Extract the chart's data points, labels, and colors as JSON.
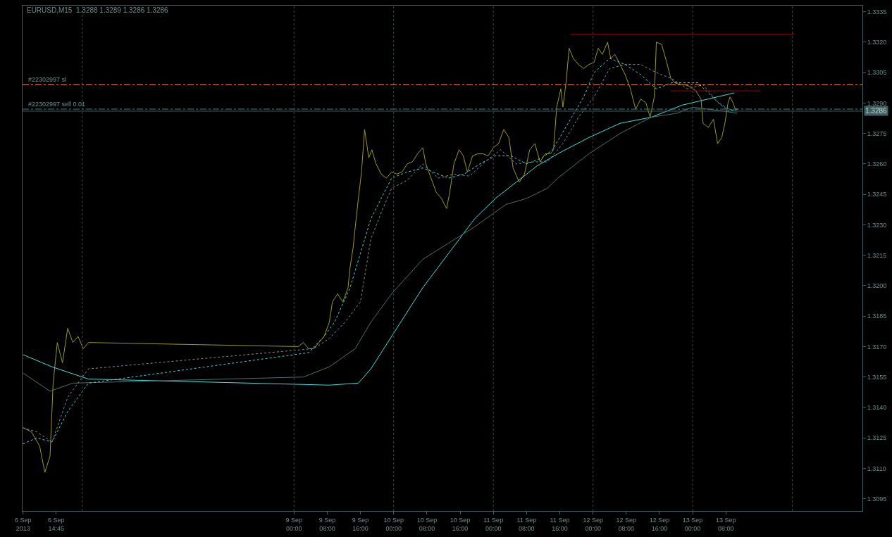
{
  "chart_data": {
    "type": "line",
    "title": "EURUSD,M15  1.3288 1.3289 1.3286 1.3286",
    "xlim": [
      "2013-09-06T06:38",
      "2013-09-14T16:52"
    ],
    "ylim": [
      1.3089,
      1.3338
    ],
    "xticks": [
      {
        "value": "2013-09-06T06:45",
        "label": "6 Sep 2013"
      },
      {
        "value": "2013-09-06T14:45",
        "label": "6 Sep 14:45"
      },
      {
        "value": "2013-09-09T00:00",
        "label": "9 Sep 00:00"
      },
      {
        "value": "2013-09-09T08:00",
        "label": "9 Sep 08:00"
      },
      {
        "value": "2013-09-09T16:00",
        "label": "9 Sep 16:00"
      },
      {
        "value": "2013-09-10T00:00",
        "label": "10 Sep 00:00"
      },
      {
        "value": "2013-09-10T08:00",
        "label": "10 Sep 08:00"
      },
      {
        "value": "2013-09-10T16:00",
        "label": "10 Sep 16:00"
      },
      {
        "value": "2013-09-11T00:00",
        "label": "11 Sep 00:00"
      },
      {
        "value": "2013-09-11T08:00",
        "label": "11 Sep 08:00"
      },
      {
        "value": "2013-09-11T16:00",
        "label": "11 Sep 16:00"
      },
      {
        "value": "2013-09-12T00:00",
        "label": "12 Sep 00:00"
      },
      {
        "value": "2013-09-12T08:00",
        "label": "12 Sep 08:00"
      },
      {
        "value": "2013-09-12T16:00",
        "label": "12 Sep 16:00"
      },
      {
        "value": "2013-09-13T00:00",
        "label": "13 Sep 00:00"
      },
      {
        "value": "2013-09-13T08:00",
        "label": "13 Sep 08:00"
      }
    ],
    "yticks": [
      {
        "value": 1.3095,
        "label": "1.3095"
      },
      {
        "value": 1.311,
        "label": "1.3110"
      },
      {
        "value": 1.3125,
        "label": "1.3125"
      },
      {
        "value": 1.314,
        "label": "1.3140"
      },
      {
        "value": 1.3155,
        "label": "1.3155"
      },
      {
        "value": 1.317,
        "label": "1.3170"
      },
      {
        "value": 1.3185,
        "label": "1.3185"
      },
      {
        "value": 1.32,
        "label": "1.3200"
      },
      {
        "value": 1.3215,
        "label": "1.3215"
      },
      {
        "value": 1.323,
        "label": "1.3230"
      },
      {
        "value": 1.3245,
        "label": "1.3245"
      },
      {
        "value": 1.326,
        "label": "1.3260"
      },
      {
        "value": 1.3275,
        "label": "1.3275"
      },
      {
        "value": 1.329,
        "label": "1.3290"
      },
      {
        "value": 1.3305,
        "label": "1.3305"
      },
      {
        "value": 1.332,
        "label": "1.3320"
      },
      {
        "value": 1.3335,
        "label": "1.3335"
      }
    ],
    "grid": false,
    "marker": "none",
    "series": [
      {
        "color": "#9a9a20",
        "line_style": "solid",
        "x": [
          "2013-09-06T06:45",
          "2013-09-06T08:45",
          "2013-09-06T10:45",
          "2013-09-06T12:00",
          "2013-09-06T13:15",
          "2013-09-06T14:00",
          "2013-09-06T15:00",
          "2013-09-06T16:15",
          "2013-09-06T17:30",
          "2013-09-06T18:45",
          "2013-09-06T20:00",
          "2013-09-06T21:15",
          "2013-09-06T22:30",
          "2013-09-09T01:00",
          "2013-09-09T02:15",
          "2013-09-09T03:30",
          "2013-09-09T04:45",
          "2013-09-09T06:00",
          "2013-09-09T07:15",
          "2013-09-09T08:30",
          "2013-09-09T09:15",
          "2013-09-09T10:30",
          "2013-09-09T11:45",
          "2013-09-09T13:00",
          "2013-09-09T13:30",
          "2013-09-09T14:15",
          "2013-09-09T14:45",
          "2013-09-09T15:30",
          "2013-09-09T16:15",
          "2013-09-09T17:00",
          "2013-09-09T18:00",
          "2013-09-09T18:45",
          "2013-09-09T19:45",
          "2013-09-09T21:00",
          "2013-09-09T22:15",
          "2013-09-09T23:30",
          "2013-09-10T00:45",
          "2013-09-10T02:00",
          "2013-09-10T03:15",
          "2013-09-10T04:30",
          "2013-09-10T05:45",
          "2013-09-10T07:00",
          "2013-09-10T07:45",
          "2013-09-10T09:00",
          "2013-09-10T10:15",
          "2013-09-10T11:30",
          "2013-09-10T12:45",
          "2013-09-10T13:30",
          "2013-09-10T14:30",
          "2013-09-10T15:45",
          "2013-09-10T16:45",
          "2013-09-10T17:45",
          "2013-09-10T19:00",
          "2013-09-10T20:15",
          "2013-09-10T21:30",
          "2013-09-10T22:45",
          "2013-09-11T00:00",
          "2013-09-11T01:15",
          "2013-09-11T02:30",
          "2013-09-11T03:45",
          "2013-09-11T04:45",
          "2013-09-11T06:15",
          "2013-09-11T07:30",
          "2013-09-11T08:45",
          "2013-09-11T10:00",
          "2013-09-11T11:15",
          "2013-09-11T12:30",
          "2013-09-11T13:45",
          "2013-09-11T14:30",
          "2013-09-11T15:15",
          "2013-09-11T16:15",
          "2013-09-11T16:45",
          "2013-09-11T17:30",
          "2013-09-11T18:15",
          "2013-09-11T19:15",
          "2013-09-11T20:30",
          "2013-09-11T21:45",
          "2013-09-11T23:00",
          "2013-09-12T00:15",
          "2013-09-12T01:15",
          "2013-09-12T02:15",
          "2013-09-12T03:30",
          "2013-09-12T04:15",
          "2013-09-12T05:15",
          "2013-09-12T06:30",
          "2013-09-12T07:45",
          "2013-09-12T09:00",
          "2013-09-12T10:15",
          "2013-09-12T11:30",
          "2013-09-12T12:45",
          "2013-09-12T13:45",
          "2013-09-12T14:45",
          "2013-09-12T15:15",
          "2013-09-12T16:30",
          "2013-09-12T17:45",
          "2013-09-12T18:45",
          "2013-09-12T19:45",
          "2013-09-12T21:00",
          "2013-09-12T22:15",
          "2013-09-12T23:30",
          "2013-09-13T00:45",
          "2013-09-13T02:00",
          "2013-09-13T02:30",
          "2013-09-13T03:45",
          "2013-09-13T05:00",
          "2013-09-13T06:00",
          "2013-09-13T07:00",
          "2013-09-13T07:45",
          "2013-09-13T08:30",
          "2013-09-13T09:00",
          "2013-09-13T09:45",
          "2013-09-13T10:15",
          "2013-09-13T10:45"
        ],
        "values": [
          1.313,
          1.3128,
          1.3121,
          1.3108,
          1.3116,
          1.3152,
          1.3172,
          1.3162,
          1.3179,
          1.3172,
          1.3175,
          1.3169,
          1.3172,
          1.317,
          1.3172,
          1.3169,
          1.3169,
          1.3172,
          1.3175,
          1.3182,
          1.3192,
          1.3196,
          1.3192,
          1.3199,
          1.3209,
          1.3219,
          1.3229,
          1.3243,
          1.3256,
          1.3277,
          1.3263,
          1.3267,
          1.326,
          1.3255,
          1.3253,
          1.3256,
          1.3255,
          1.3256,
          1.326,
          1.3261,
          1.3265,
          1.3268,
          1.326,
          1.3253,
          1.3246,
          1.3243,
          1.3238,
          1.3246,
          1.326,
          1.3267,
          1.3264,
          1.3256,
          1.3264,
          1.3265,
          1.3265,
          1.3264,
          1.3268,
          1.327,
          1.3277,
          1.3273,
          1.3258,
          1.3251,
          1.3255,
          1.3267,
          1.327,
          1.3261,
          1.3265,
          1.3265,
          1.3267,
          1.3288,
          1.3297,
          1.3288,
          1.33,
          1.3317,
          1.3312,
          1.3309,
          1.3307,
          1.3309,
          1.331,
          1.3317,
          1.3314,
          1.332,
          1.3312,
          1.3314,
          1.3309,
          1.3304,
          1.3297,
          1.3287,
          1.3292,
          1.329,
          1.3283,
          1.3293,
          1.332,
          1.3319,
          1.331,
          1.3302,
          1.33,
          1.3299,
          1.3299,
          1.3298,
          1.3296,
          1.3292,
          1.328,
          1.3278,
          1.3282,
          1.327,
          1.3273,
          1.328,
          1.329,
          1.3293,
          1.329,
          1.3287,
          1.3287
        ]
      },
      {
        "color": "#40e0e0",
        "line_style": "solid",
        "x": [
          "2013-09-06T06:45",
          "2013-09-06T13:45",
          "2013-09-06T22:30",
          "2013-09-09T08:30",
          "2013-09-09T15:30",
          "2013-09-09T18:30",
          "2013-09-10T00:45",
          "2013-09-10T07:00",
          "2013-09-10T13:15",
          "2013-09-10T19:30",
          "2013-09-11T00:30",
          "2013-09-11T05:30",
          "2013-09-11T10:30",
          "2013-09-11T15:30",
          "2013-09-11T23:00",
          "2013-09-12T06:30",
          "2013-09-12T14:00",
          "2013-09-12T21:30",
          "2013-09-13T03:45",
          "2013-09-13T10:00"
        ],
        "values": [
          1.3166,
          1.316,
          1.3154,
          1.3151,
          1.3152,
          1.3159,
          1.3179,
          1.3199,
          1.3216,
          1.3233,
          1.3243,
          1.3251,
          1.3259,
          1.3265,
          1.3273,
          1.328,
          1.3283,
          1.3289,
          1.3292,
          1.3295
        ]
      },
      {
        "color": "#4f6f6f",
        "line_style": "solid",
        "x": [
          "2013-09-06T06:45",
          "2013-09-06T13:15",
          "2013-09-06T18:45",
          "2013-09-09T02:15",
          "2013-09-09T08:30",
          "2013-09-09T14:45",
          "2013-09-09T18:30",
          "2013-09-09T23:30",
          "2013-09-10T07:00",
          "2013-09-10T13:15",
          "2013-09-10T19:30",
          "2013-09-11T03:00",
          "2013-09-11T08:00",
          "2013-09-11T13:00",
          "2013-09-11T15:30",
          "2013-09-11T23:00",
          "2013-09-12T06:30",
          "2013-09-12T14:00",
          "2013-09-12T20:15",
          "2013-09-13T00:00",
          "2013-09-13T03:45",
          "2013-09-13T07:30",
          "2013-09-13T10:45"
        ],
        "values": [
          1.3157,
          1.3148,
          1.3152,
          1.3155,
          1.316,
          1.3169,
          1.3182,
          1.3196,
          1.3213,
          1.3221,
          1.3229,
          1.324,
          1.3243,
          1.3248,
          1.3253,
          1.3265,
          1.3275,
          1.3283,
          1.3285,
          1.3288,
          1.3287,
          1.3286,
          1.3285
        ]
      },
      {
        "color": "#40e0e0",
        "line_style": "dotted",
        "x": [
          "2013-09-06T06:45",
          "2013-09-06T10:00",
          "2013-09-06T13:45",
          "2013-09-06T17:30",
          "2013-09-06T22:30",
          "2013-09-09T03:30",
          "2013-09-09T07:15",
          "2013-09-09T09:45",
          "2013-09-09T13:30",
          "2013-09-09T16:00",
          "2013-09-09T18:30",
          "2013-09-09T21:00",
          "2013-09-09T23:30",
          "2013-09-10T03:15",
          "2013-09-10T07:00",
          "2013-09-10T09:30",
          "2013-09-10T13:15",
          "2013-09-10T17:00",
          "2013-09-10T20:45",
          "2013-09-11T00:30",
          "2013-09-11T04:15",
          "2013-09-11T08:00",
          "2013-09-11T11:45",
          "2013-09-11T14:15",
          "2013-09-11T18:00",
          "2013-09-11T21:45",
          "2013-09-12T00:15",
          "2013-09-12T04:00",
          "2013-09-12T07:45",
          "2013-09-12T11:30",
          "2013-09-12T15:15",
          "2013-09-12T19:00",
          "2013-09-12T22:45",
          "2013-09-13T01:15",
          "2013-09-13T03:45",
          "2013-09-13T06:15",
          "2013-09-13T08:45",
          "2013-09-13T10:45"
        ],
        "values": [
          1.3122,
          1.3125,
          1.3123,
          1.3138,
          1.3152,
          1.3167,
          1.3175,
          1.3182,
          1.3199,
          1.3216,
          1.3233,
          1.3243,
          1.3253,
          1.3256,
          1.3258,
          1.3256,
          1.3253,
          1.3255,
          1.326,
          1.3264,
          1.3264,
          1.326,
          1.3263,
          1.3267,
          1.328,
          1.3293,
          1.3305,
          1.3312,
          1.3309,
          1.3304,
          1.3297,
          1.33,
          1.33,
          1.33,
          1.3295,
          1.329,
          1.3286,
          1.3287
        ]
      },
      {
        "color": "#8090a0",
        "line_style": "dotted",
        "x": [
          "2013-09-06T06:45",
          "2013-09-06T10:00",
          "2013-09-06T13:45",
          "2013-09-06T17:30",
          "2013-09-06T22:30",
          "2013-09-09T04:45",
          "2013-09-09T08:30",
          "2013-09-09T12:15",
          "2013-09-09T16:00",
          "2013-09-09T18:30",
          "2013-09-09T21:00",
          "2013-09-09T23:30",
          "2013-09-10T03:15",
          "2013-09-10T07:00",
          "2013-09-10T10:45",
          "2013-09-10T14:30",
          "2013-09-10T18:15",
          "2013-09-10T22:00",
          "2013-09-11T01:45",
          "2013-09-11T05:30",
          "2013-09-11T09:15",
          "2013-09-11T13:00",
          "2013-09-11T16:45",
          "2013-09-11T20:30",
          "2013-09-12T00:15",
          "2013-09-12T04:00",
          "2013-09-12T07:45",
          "2013-09-12T11:30",
          "2013-09-12T15:15",
          "2013-09-12T19:00",
          "2013-09-12T22:45",
          "2013-09-13T02:30",
          "2013-09-13T06:15",
          "2013-09-13T08:45",
          "2013-09-13T10:45"
        ],
        "values": [
          1.313,
          1.3128,
          1.3123,
          1.3145,
          1.3159,
          1.3169,
          1.3174,
          1.3182,
          1.3192,
          1.3223,
          1.3236,
          1.3248,
          1.3252,
          1.326,
          1.3253,
          1.3255,
          1.3254,
          1.3261,
          1.3267,
          1.326,
          1.3261,
          1.3261,
          1.327,
          1.3283,
          1.3293,
          1.3307,
          1.3309,
          1.3309,
          1.3305,
          1.3302,
          1.3297,
          1.3299,
          1.329,
          1.3287,
          1.3286
        ]
      },
      {
        "color": "#8b0000",
        "line_style": "solid",
        "x": [
          "2013-09-11T18:30",
          "2013-09-14T00:30"
        ],
        "values": [
          1.3324,
          1.3324
        ]
      },
      {
        "color": "#b00000",
        "line_style": "solid",
        "x": [
          "2013-09-12T18:45",
          "2013-09-13T16:15"
        ],
        "values": [
          1.3296,
          1.3296
        ]
      }
    ],
    "ref_lines": [
      {
        "axis": "y",
        "value": 1.3299,
        "label": "#22302997 sl",
        "color": "#e8901c",
        "line_style": "dashed"
      },
      {
        "axis": "y",
        "value": 1.3287,
        "label": "#22302997 sell 0.01",
        "color": "#2a8a8a",
        "line_style": "dashed"
      },
      {
        "axis": "y",
        "value": 1.3286,
        "label": "1.3286",
        "color": "#3f6060",
        "line_style": "solid"
      },
      {
        "axis": "x",
        "value": "2013-09-06T21:00",
        "color": "#2f4f4f",
        "line_style": "dotted"
      },
      {
        "axis": "x",
        "value": "2013-09-09T00:00",
        "color": "#2f4f4f",
        "line_style": "dotted"
      },
      {
        "axis": "x",
        "value": "2013-09-10T00:00",
        "color": "#2f4f4f",
        "line_style": "dotted"
      },
      {
        "axis": "x",
        "value": "2013-09-11T00:00",
        "color": "#2f4f4f",
        "line_style": "dotted"
      },
      {
        "axis": "x",
        "value": "2013-09-12T00:00",
        "color": "#2f4f4f",
        "line_style": "dotted"
      },
      {
        "axis": "x",
        "value": "2013-09-13T00:00",
        "color": "#2f4f4f",
        "line_style": "dotted"
      },
      {
        "axis": "x",
        "value": "2013-09-14T00:00",
        "color": "#2f4f4f",
        "line_style": "dotted"
      }
    ]
  }
}
